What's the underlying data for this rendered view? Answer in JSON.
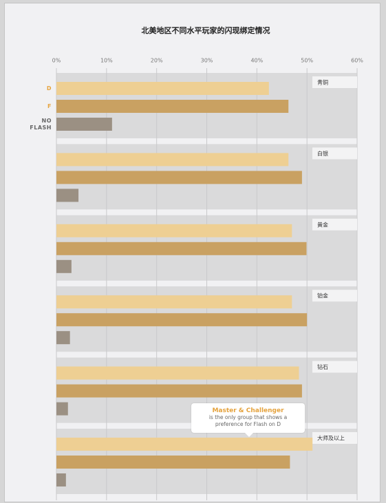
{
  "chart_data": {
    "type": "bar",
    "orientation": "horizontal",
    "title": "北美地区不同水平玩家的闪现绑定情况",
    "categories": [
      "青铜",
      "白银",
      "黄金",
      "铂金",
      "钻石",
      "大师及以上"
    ],
    "series": [
      {
        "name": "D",
        "color": "#eecf93",
        "values": [
          42.4,
          46.3,
          47,
          47,
          48.4,
          51.1
        ]
      },
      {
        "name": "F",
        "color": "#c9a162",
        "values": [
          46.3,
          49,
          49.9,
          50,
          49,
          46.6
        ]
      },
      {
        "name": "NO FLASH",
        "color": "#9b9083",
        "values": [
          11.1,
          4.4,
          3,
          2.7,
          2.3,
          1.9
        ]
      }
    ],
    "xlim": [
      0,
      60
    ],
    "xticks": [
      {
        "value": 0,
        "label": "0%"
      },
      {
        "value": 10,
        "label": "10%"
      },
      {
        "value": 20,
        "label": "20%"
      },
      {
        "value": 30,
        "label": "30%"
      },
      {
        "value": 40,
        "label": "40%"
      },
      {
        "value": 50,
        "label": "50%"
      },
      {
        "value": 60,
        "label": "60%"
      }
    ],
    "grid": true,
    "annotation": {
      "title": "Master & Challenger",
      "lines": [
        "is the only group that shows a",
        "preference for Flash on D"
      ]
    }
  }
}
